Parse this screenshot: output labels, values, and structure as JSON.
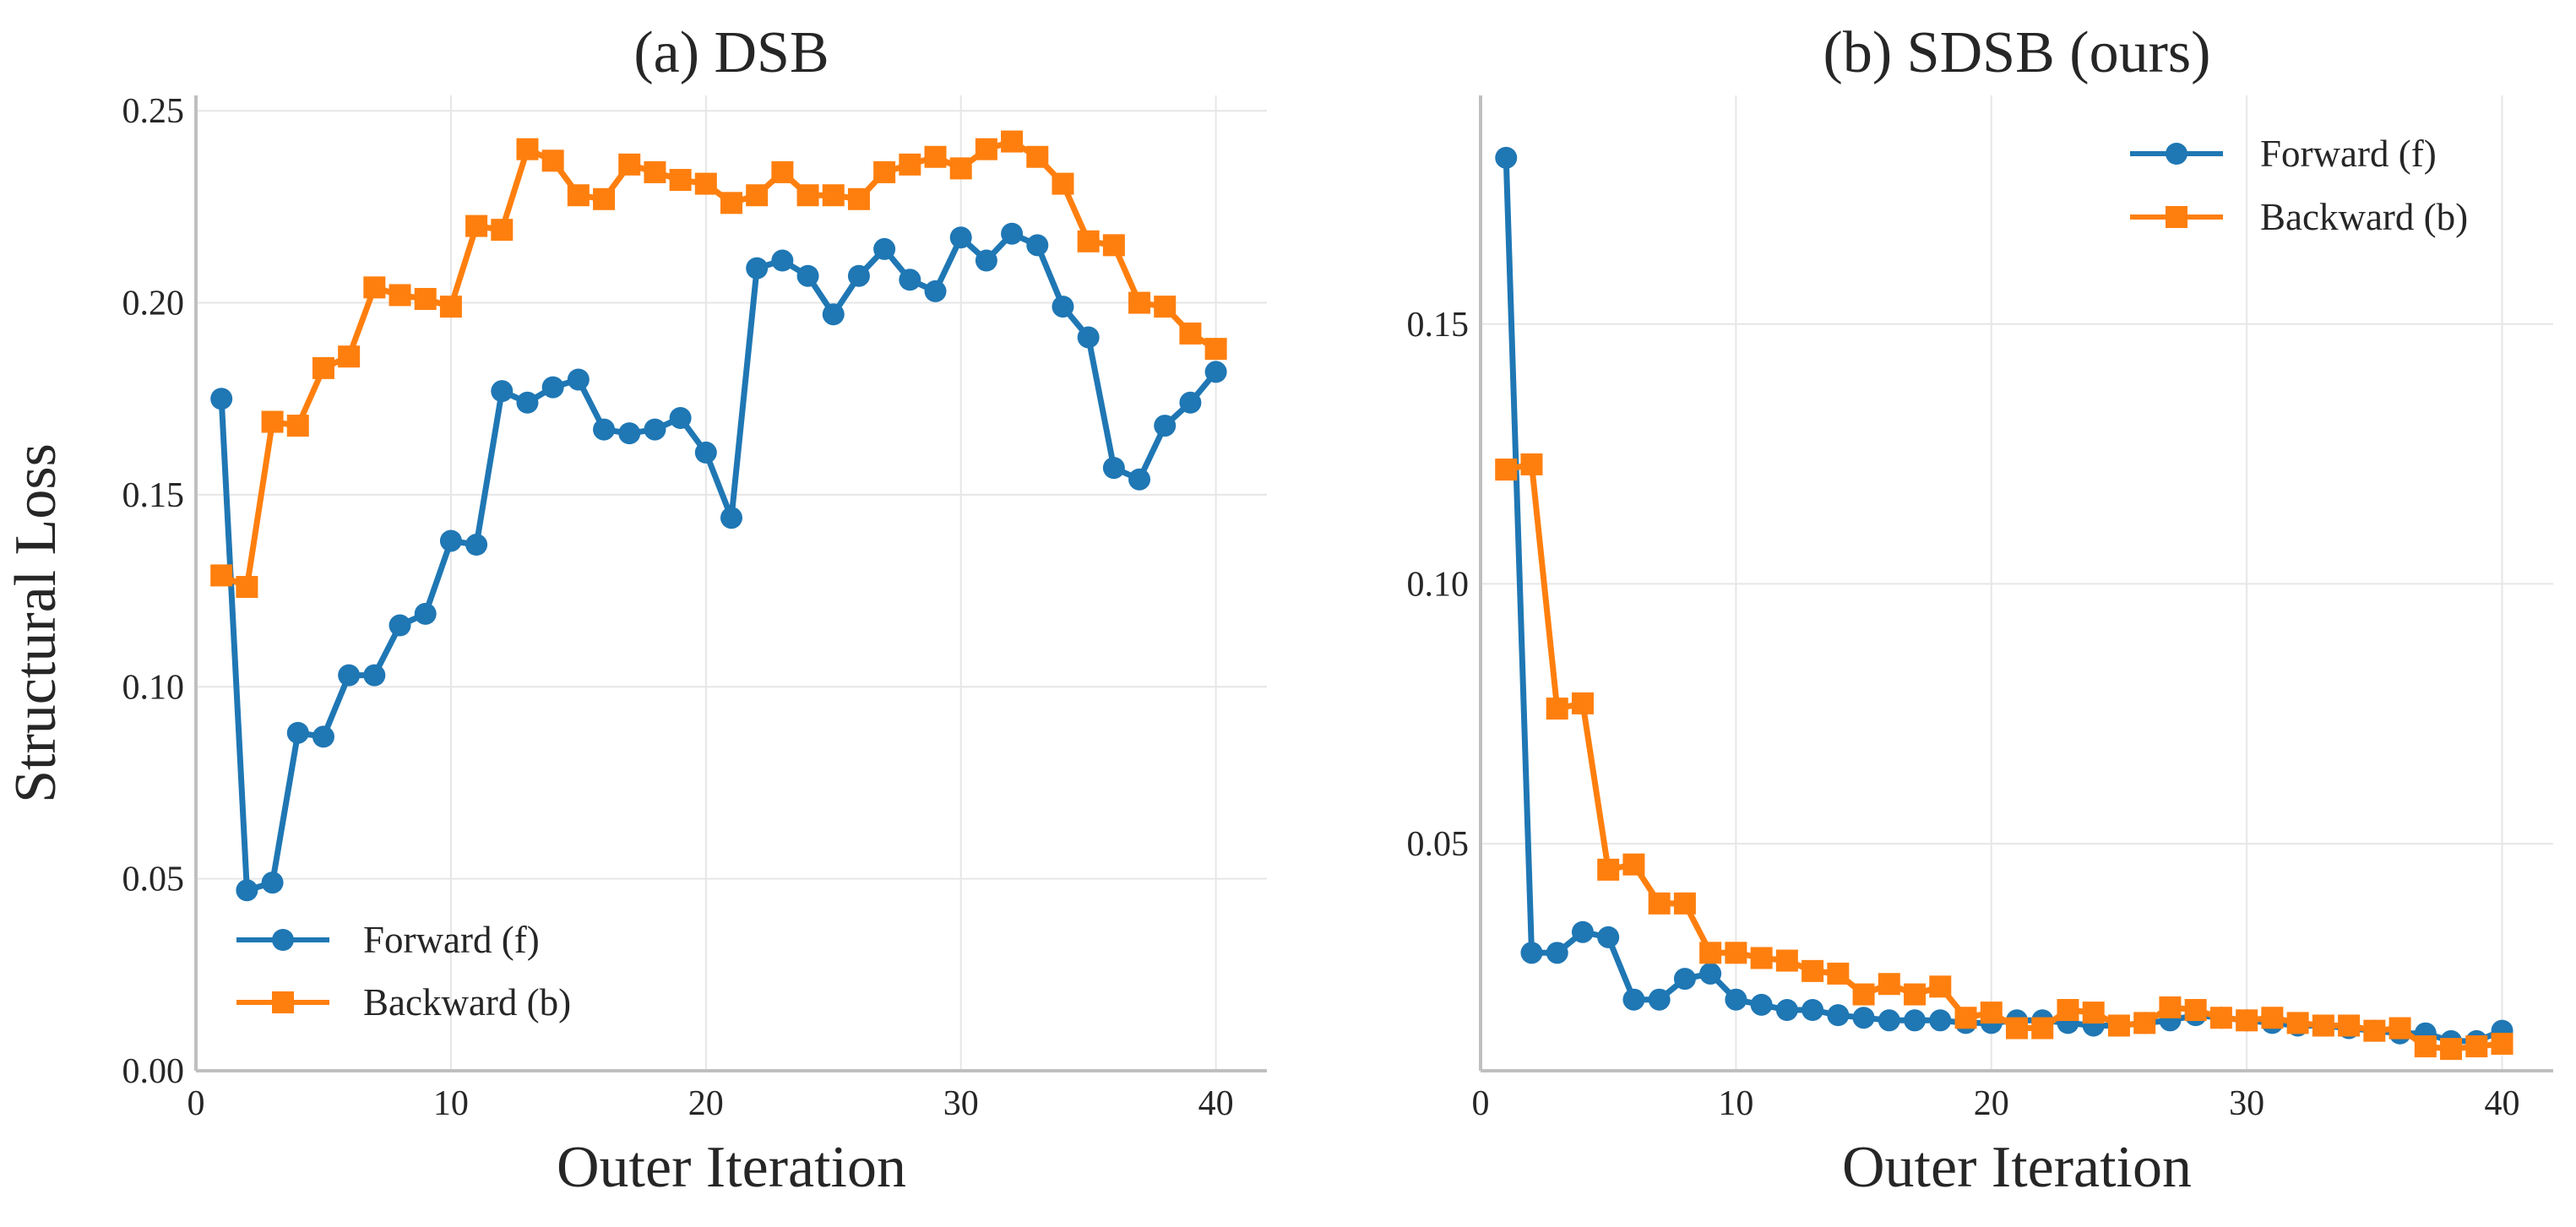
{
  "chart_data": [
    {
      "type": "line",
      "title": "(a) DSB",
      "xlabel": "Outer Iteration",
      "ylabel": "Structural Loss",
      "xlim": [
        0,
        42
      ],
      "ylim": [
        0,
        0.254
      ],
      "xticks": [
        0,
        10,
        20,
        30,
        40
      ],
      "xtick_labels": [
        "0",
        "10",
        "20",
        "30",
        "40"
      ],
      "yticks": [
        0,
        0.05,
        0.1,
        0.15,
        0.2,
        0.25
      ],
      "ytick_labels": [
        "0.00",
        "0.05",
        "0.10",
        "0.15",
        "0.20",
        "0.25"
      ],
      "legend_position": "lower-left",
      "x": [
        1,
        2,
        3,
        4,
        5,
        6,
        7,
        8,
        9,
        10,
        11,
        12,
        13,
        14,
        15,
        16,
        17,
        18,
        19,
        20,
        21,
        22,
        23,
        24,
        25,
        26,
        27,
        28,
        29,
        30,
        31,
        32,
        33,
        34,
        35,
        36,
        37,
        38,
        39,
        40
      ],
      "series": [
        {
          "name": "Forward (f)",
          "color": "#1f77b4",
          "marker": "circle",
          "values": [
            0.175,
            0.047,
            0.049,
            0.088,
            0.087,
            0.103,
            0.103,
            0.116,
            0.119,
            0.138,
            0.137,
            0.177,
            0.174,
            0.178,
            0.18,
            0.167,
            0.166,
            0.167,
            0.17,
            0.161,
            0.144,
            0.209,
            0.211,
            0.207,
            0.197,
            0.207,
            0.214,
            0.206,
            0.203,
            0.217,
            0.211,
            0.218,
            0.215,
            0.199,
            0.191,
            0.157,
            0.154,
            0.168,
            0.174,
            0.182
          ]
        },
        {
          "name": "Backward (b)",
          "color": "#ff7f0e",
          "marker": "square",
          "values": [
            0.129,
            0.126,
            0.169,
            0.168,
            0.183,
            0.186,
            0.204,
            0.202,
            0.201,
            0.199,
            0.22,
            0.219,
            0.24,
            0.237,
            0.228,
            0.227,
            0.236,
            0.234,
            0.232,
            0.231,
            0.226,
            0.228,
            0.234,
            0.228,
            0.228,
            0.227,
            0.234,
            0.236,
            0.238,
            0.235,
            0.24,
            0.242,
            0.238,
            0.231,
            0.216,
            0.215,
            0.2,
            0.199,
            0.192,
            0.188
          ]
        }
      ]
    },
    {
      "type": "line",
      "title": "(b) SDSB (ours)",
      "xlabel": "Outer Iteration",
      "ylabel": "",
      "xlim": [
        0,
        42
      ],
      "ylim": [
        0.0063,
        0.194
      ],
      "xticks": [
        0,
        10,
        20,
        30,
        40
      ],
      "xtick_labels": [
        "0",
        "10",
        "20",
        "30",
        "40"
      ],
      "yticks": [
        0.05,
        0.1,
        0.15
      ],
      "ytick_labels": [
        "0.05",
        "0.10",
        "0.15"
      ],
      "legend_position": "upper-right",
      "x": [
        1,
        2,
        3,
        4,
        5,
        6,
        7,
        8,
        9,
        10,
        11,
        12,
        13,
        14,
        15,
        16,
        17,
        18,
        19,
        20,
        21,
        22,
        23,
        24,
        25,
        26,
        27,
        28,
        29,
        30,
        31,
        32,
        33,
        34,
        35,
        36,
        37,
        38,
        39,
        40
      ],
      "series": [
        {
          "name": "Forward (f)",
          "color": "#1f77b4",
          "marker": "circle",
          "values": [
            0.182,
            0.029,
            0.029,
            0.033,
            0.032,
            0.02,
            0.02,
            0.024,
            0.025,
            0.02,
            0.019,
            0.018,
            0.018,
            0.017,
            0.0165,
            0.016,
            0.016,
            0.016,
            0.0155,
            0.0155,
            0.016,
            0.016,
            0.0155,
            0.015,
            0.015,
            0.0155,
            0.016,
            0.017,
            0.0165,
            0.016,
            0.0155,
            0.015,
            0.015,
            0.0145,
            0.014,
            0.0135,
            0.0135,
            0.012,
            0.012,
            0.014
          ]
        },
        {
          "name": "Backward (b)",
          "color": "#ff7f0e",
          "marker": "square",
          "values": [
            0.122,
            0.123,
            0.076,
            0.077,
            0.045,
            0.046,
            0.0385,
            0.0385,
            0.029,
            0.029,
            0.028,
            0.0275,
            0.0255,
            0.025,
            0.021,
            0.023,
            0.021,
            0.0225,
            0.0165,
            0.0175,
            0.0145,
            0.0145,
            0.018,
            0.0175,
            0.015,
            0.0155,
            0.0185,
            0.018,
            0.0165,
            0.016,
            0.0165,
            0.0155,
            0.015,
            0.015,
            0.014,
            0.0145,
            0.011,
            0.0105,
            0.011,
            0.0115
          ]
        }
      ]
    }
  ]
}
